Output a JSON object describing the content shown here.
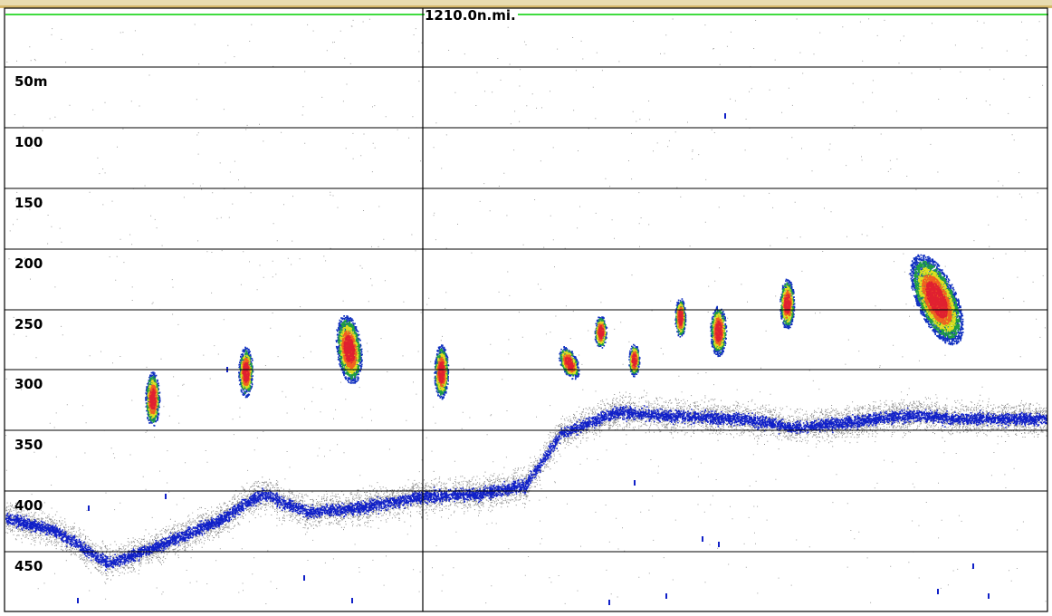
{
  "display": {
    "distance_marker": "1210.0n.mi.",
    "colors": {
      "background": "#ffffff",
      "grid": "#000000",
      "top_line": "#00d000",
      "header_band": "#c8a040",
      "bottom_band": "#0000c0"
    },
    "depth_scale": [
      {
        "label": "50m",
        "depth_m": 50
      },
      {
        "label": "100",
        "depth_m": 100
      },
      {
        "label": "150",
        "depth_m": 150
      },
      {
        "label": "200",
        "depth_m": 200
      },
      {
        "label": "250",
        "depth_m": 250
      },
      {
        "label": "300",
        "depth_m": 300
      },
      {
        "label": "350",
        "depth_m": 350
      },
      {
        "label": "400",
        "depth_m": 400
      },
      {
        "label": "450",
        "depth_m": 450
      }
    ]
  }
}
